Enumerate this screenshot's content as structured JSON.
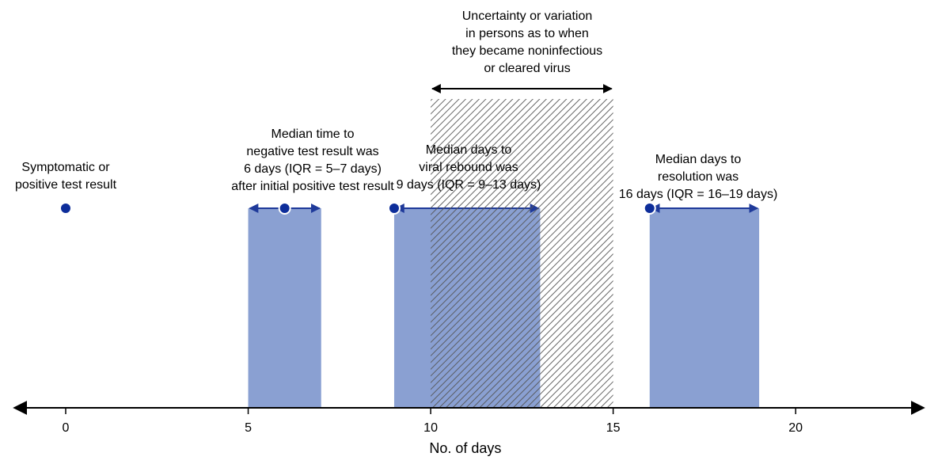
{
  "chart_data": {
    "type": "timeline",
    "xlabel": "No. of days",
    "xlim": [
      -1.8,
      23.9
    ],
    "xticks": [
      0,
      5,
      10,
      15,
      20
    ],
    "colors": {
      "bar": "#8aa0d2",
      "marker": "#0d2d9a",
      "arrow": "#1f3a9a",
      "hatch": "#555555",
      "axis": "#000000"
    },
    "points": [
      {
        "x": 0,
        "label": [
          "Symptomatic or",
          "positive test result"
        ]
      }
    ],
    "intervals": [
      {
        "median": 6,
        "iqr": [
          5,
          7
        ],
        "label": [
          "Median time to",
          "negative test result was",
          "6 days (IQR = 5–7 days)",
          "after initial positive test result"
        ]
      },
      {
        "median": 9,
        "iqr": [
          9,
          13
        ],
        "label": [
          "Median days to",
          "viral rebound was",
          "9 days (IQR = 9–13 days)"
        ]
      },
      {
        "median": 16,
        "iqr": [
          16,
          19
        ],
        "label": [
          "Median days to",
          "resolution was",
          "16 days (IQR = 16–19 days)"
        ]
      }
    ],
    "uncertainty_band": {
      "range": [
        10,
        15
      ],
      "label": [
        "Uncertainty or variation",
        "in persons as to when",
        "they became noninfectious",
        "or cleared virus"
      ]
    }
  }
}
